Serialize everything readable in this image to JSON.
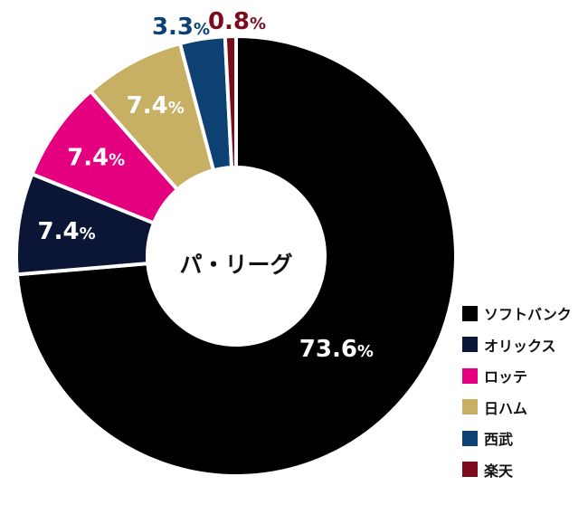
{
  "chart_data": {
    "type": "pie",
    "donut": true,
    "center_label": "パ・リーグ",
    "legend_position": "bottom-right",
    "slices": [
      {
        "name": "ソフトバンク",
        "value": 73.6,
        "label": "73.6",
        "color": "#000000"
      },
      {
        "name": "オリックス",
        "value": 7.4,
        "label": "7.4",
        "color": "#0b1535"
      },
      {
        "name": "ロッテ",
        "value": 7.4,
        "label": "7.4",
        "color": "#e5007f"
      },
      {
        "name": "日ハム",
        "value": 7.4,
        "label": "7.4",
        "color": "#c7af63"
      },
      {
        "name": "西武",
        "value": 3.3,
        "label": "3.3",
        "color": "#0d4174"
      },
      {
        "name": "楽天",
        "value": 0.8,
        "label": "0.8",
        "color": "#7a0c1e"
      }
    ],
    "percent_sign": "%"
  }
}
